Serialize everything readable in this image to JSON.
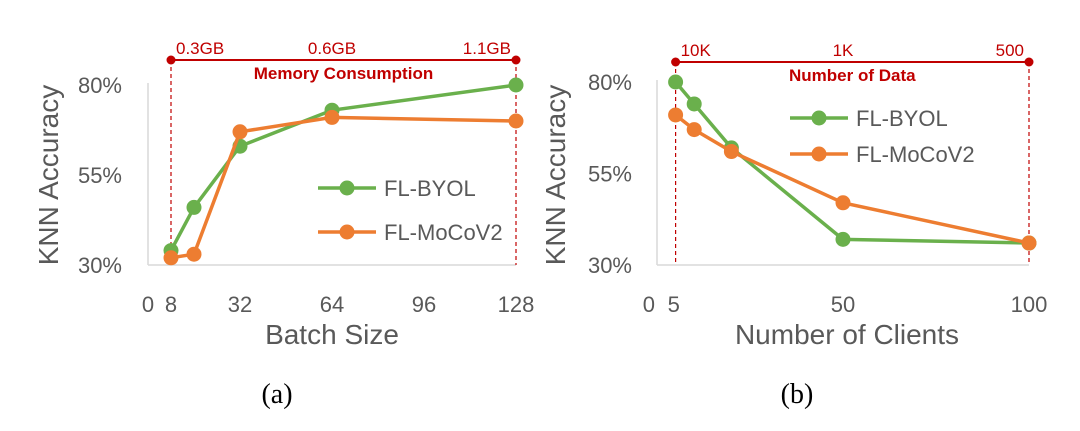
{
  "colors": {
    "byol": "#6ab04c",
    "moco": "#ed7d31",
    "annot": "#c00000",
    "axis": "#d9d9d9",
    "text": "#595959"
  },
  "chart_data": [
    {
      "type": "line",
      "caption": "(a)",
      "xlabel": "Batch Size",
      "ylabel": "KNN Accuracy",
      "xlim": [
        0,
        128
      ],
      "ylim": [
        30,
        80
      ],
      "xticks": [
        {
          "value": 0,
          "label": "0"
        },
        {
          "value": 8,
          "label": "8"
        },
        {
          "value": 32,
          "label": "32"
        },
        {
          "value": 64,
          "label": "64"
        },
        {
          "value": 96,
          "label": "96"
        },
        {
          "value": 128,
          "label": "128"
        }
      ],
      "yticks": [
        {
          "value": 30,
          "label": "30%"
        },
        {
          "value": 55,
          "label": "55%"
        },
        {
          "value": 80,
          "label": "80%"
        }
      ],
      "series": [
        {
          "name": "FL-BYOL",
          "color_key": "byol",
          "points": [
            [
              8,
              34
            ],
            [
              16,
              46
            ],
            [
              32,
              63
            ],
            [
              64,
              73
            ],
            [
              128,
              80
            ]
          ]
        },
        {
          "name": "FL-MoCoV2",
          "color_key": "moco",
          "points": [
            [
              8,
              32
            ],
            [
              16,
              33
            ],
            [
              32,
              67
            ],
            [
              64,
              71
            ],
            [
              128,
              70
            ]
          ]
        }
      ],
      "top_annotation": {
        "title": "Memory Consumption",
        "labels": [
          {
            "text": "0.3GB",
            "x": 8
          },
          {
            "text": "0.6GB",
            "x": 64
          },
          {
            "text": "1.1GB",
            "x": 128
          }
        ],
        "marker_x": [
          8,
          128
        ]
      },
      "legend_position": "right-center"
    },
    {
      "type": "line",
      "caption": "(b)",
      "xlabel": "Number of Clients",
      "ylabel": "KNN Accuracy",
      "xlim": [
        0,
        100
      ],
      "ylim": [
        30,
        80
      ],
      "xticks": [
        {
          "value": 0,
          "label": "0"
        },
        {
          "value": 5,
          "label": "5"
        },
        {
          "value": 50,
          "label": "50"
        },
        {
          "value": 100,
          "label": "100"
        }
      ],
      "yticks": [
        {
          "value": 30,
          "label": "30%"
        },
        {
          "value": 55,
          "label": "55%"
        },
        {
          "value": 80,
          "label": "80%"
        }
      ],
      "series": [
        {
          "name": "FL-BYOL",
          "color_key": "byol",
          "points": [
            [
              5,
              80
            ],
            [
              10,
              74
            ],
            [
              20,
              62
            ],
            [
              50,
              37
            ],
            [
              100,
              36
            ]
          ]
        },
        {
          "name": "FL-MoCoV2",
          "color_key": "moco",
          "points": [
            [
              5,
              71
            ],
            [
              10,
              67
            ],
            [
              20,
              61
            ],
            [
              50,
              47
            ],
            [
              100,
              36
            ]
          ]
        }
      ],
      "top_annotation": {
        "title": "Number of Data",
        "labels": [
          {
            "text": "10K",
            "x": 5
          },
          {
            "text": "1K",
            "x": 50
          },
          {
            "text": "500",
            "x": 100
          }
        ],
        "marker_x": [
          5,
          100
        ]
      },
      "legend_position": "top-right"
    }
  ]
}
